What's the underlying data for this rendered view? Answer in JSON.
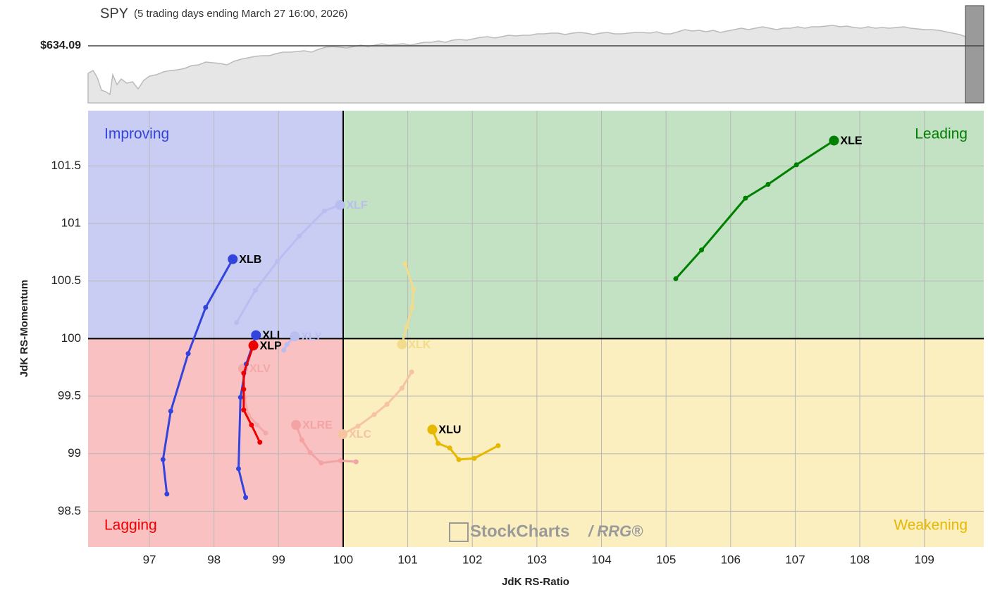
{
  "chart_data": {
    "type": "rrg",
    "title": "SPY",
    "subtitle": "(5 trading days ending March 27 16:00, 2026)",
    "price_label": "$634.09",
    "x_label": "JdK RS-Ratio",
    "y_label": "JdK RS-Momentum",
    "quadrants": {
      "improving": "Improving",
      "leading": "Leading",
      "lagging": "Lagging",
      "weakening": "Weakening"
    },
    "watermark": [
      "StockCharts",
      "/ RRG®"
    ],
    "xlim": [
      96.05,
      109.92
    ],
    "ylim": [
      98.19,
      101.98
    ],
    "xticks": [
      97,
      98,
      99,
      100,
      101,
      102,
      103,
      104,
      105,
      106,
      107,
      108,
      109
    ],
    "yticks": [
      98.5,
      99,
      99.5,
      100,
      100.5,
      101,
      101.5
    ],
    "grid": true,
    "center": [
      100,
      100
    ],
    "series": [
      {
        "name": "XLF",
        "color": "#b9bef0",
        "x": [
          98.35,
          98.64,
          98.98,
          99.32,
          99.71,
          99.95
        ],
        "values": [
          100.14,
          100.42,
          100.67,
          100.89,
          101.11,
          101.16
        ]
      },
      {
        "name": "XLY",
        "color": "#b9bef0",
        "x": [
          99.08,
          99.13,
          99.25
        ],
        "values": [
          99.9,
          99.95,
          100.02
        ]
      },
      {
        "name": "XLK",
        "color": "#f2dc8c",
        "x": [
          100.96,
          101.09,
          101.07,
          100.98,
          100.91
        ],
        "values": [
          100.65,
          100.43,
          100.27,
          100.1,
          99.95
        ]
      },
      {
        "name": "XLV",
        "color": "#f3a9a9",
        "x": [
          98.8,
          98.67,
          98.53,
          98.47,
          98.45
        ],
        "values": [
          99.18,
          99.25,
          99.34,
          99.49,
          99.74
        ]
      },
      {
        "name": "XLRE",
        "color": "#f3a3a3",
        "x": [
          100.2,
          99.96,
          99.66,
          99.49,
          99.36,
          99.27
        ],
        "values": [
          98.93,
          98.94,
          98.92,
          99.01,
          99.12,
          99.25
        ]
      },
      {
        "name": "XLC",
        "color": "#f6c3a3",
        "x": [
          101.06,
          100.91,
          100.68,
          100.48,
          100.23,
          99.99
        ],
        "values": [
          99.71,
          99.57,
          99.43,
          99.34,
          99.24,
          99.17
        ]
      },
      {
        "name": "XLE",
        "color": "#008000",
        "x": [
          105.15,
          105.55,
          106.23,
          106.58,
          107.02,
          107.6
        ],
        "values": [
          100.52,
          100.77,
          101.22,
          101.34,
          101.51,
          101.72
        ]
      },
      {
        "name": "XLB",
        "color": "#3344dd",
        "x": [
          97.27,
          97.21,
          97.33,
          97.6,
          97.87,
          98.29
        ],
        "values": [
          98.65,
          98.95,
          99.37,
          99.87,
          100.27,
          100.69
        ]
      },
      {
        "name": "XLI",
        "color": "#3344dd",
        "x": [
          98.49,
          98.38,
          98.41,
          98.5,
          98.65
        ],
        "values": [
          98.62,
          98.87,
          99.49,
          99.78,
          100.03
        ]
      },
      {
        "name": "XLP",
        "color": "#ee0000",
        "x": [
          98.71,
          98.58,
          98.46,
          98.46,
          98.46,
          98.61
        ],
        "values": [
          99.1,
          99.25,
          99.38,
          99.56,
          99.7,
          99.94
        ]
      },
      {
        "name": "XLU",
        "color": "#e6b800",
        "x": [
          102.4,
          102.03,
          101.79,
          101.65,
          101.47,
          101.38
        ],
        "values": [
          99.07,
          98.96,
          98.95,
          99.05,
          99.09,
          99.21
        ]
      }
    ]
  }
}
